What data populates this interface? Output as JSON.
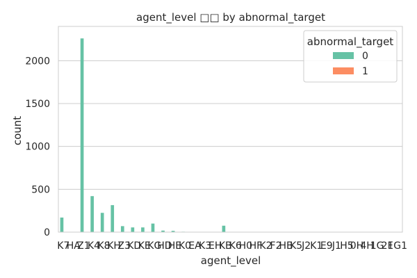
{
  "chart_data": {
    "type": "bar",
    "title": "agent_level □□ by abnormal_target",
    "xlabel": "agent_level",
    "ylabel": "count",
    "categories": [
      "K7",
      "HA",
      "Z1",
      "K4",
      "K8",
      "KH",
      "Z3",
      "KD",
      "KE",
      "KG",
      "HD",
      "HE",
      "K0",
      "EA",
      "K3",
      "EH",
      "KB",
      "K6",
      "H0",
      "HF",
      "K2",
      "F2",
      "HB",
      "K5",
      "J2",
      "K1",
      "E9",
      "J1",
      "H5",
      "0H",
      "4H",
      "1G",
      "2F",
      "1G1"
    ],
    "categories_note_free": true,
    "series": [
      {
        "name": "0",
        "color": "#66c2a5",
        "values": [
          170,
          0,
          2260,
          420,
          225,
          315,
          70,
          55,
          55,
          100,
          18,
          15,
          5,
          4,
          3,
          3,
          75,
          3,
          2,
          2,
          2,
          2,
          2,
          2,
          1,
          1,
          1,
          1,
          1,
          1,
          1,
          1,
          1,
          1
        ]
      },
      {
        "name": "1",
        "color": "#fc8d62",
        "values": [
          0,
          0,
          0,
          0,
          0,
          0,
          0,
          0,
          0,
          0,
          0,
          0,
          0,
          0,
          0,
          0,
          0,
          0,
          0,
          0,
          0,
          0,
          0,
          0,
          0,
          0,
          0,
          0,
          0,
          0,
          0,
          0,
          0,
          0
        ]
      }
    ],
    "ylim": [
      0,
      2400
    ],
    "yticks": [
      0,
      500,
      1000,
      1500,
      2000
    ],
    "grid": "y",
    "legend": {
      "title": "abnormal_target",
      "placement": "top-right"
    }
  }
}
